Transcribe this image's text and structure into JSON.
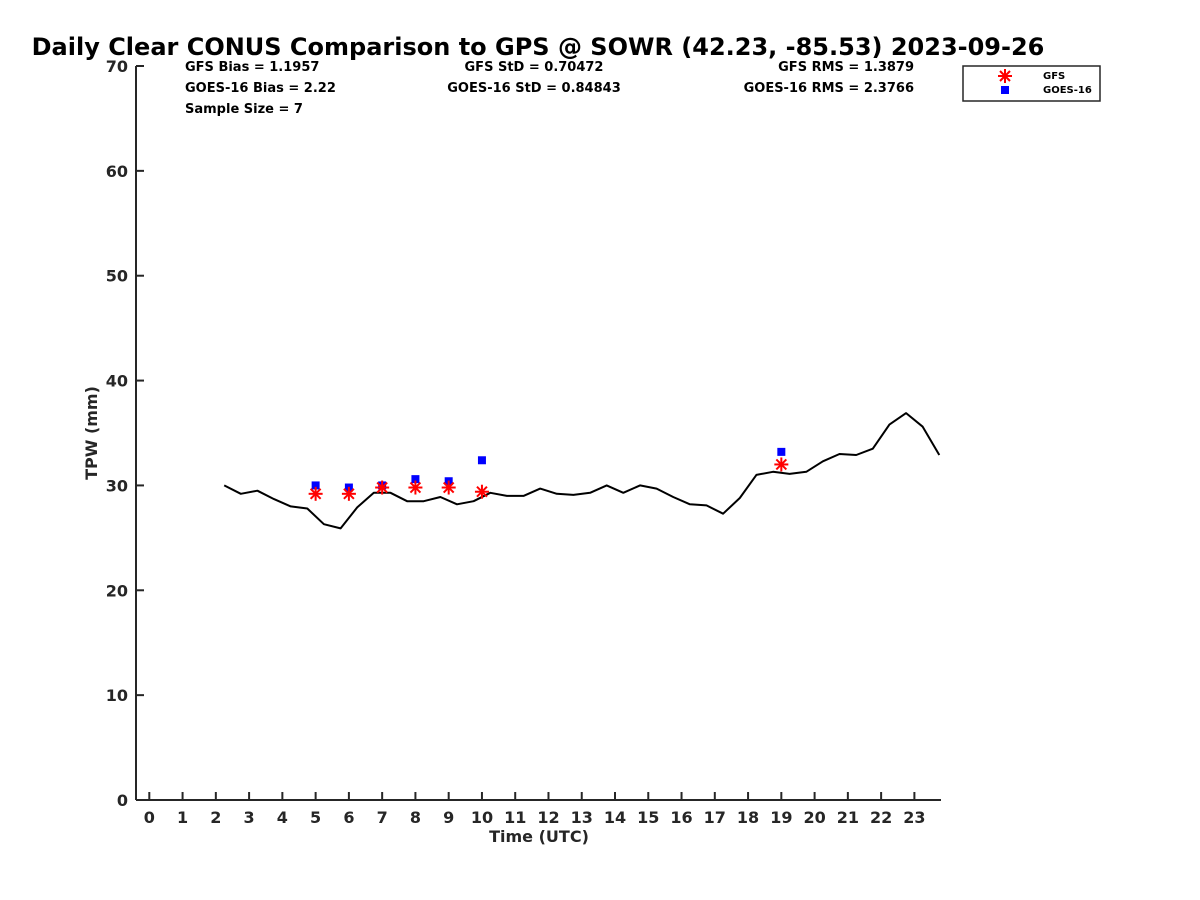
{
  "chart_data": {
    "type": "scatter",
    "title": "Daily Clear CONUS Comparison to GPS @ SOWR (42.23, -85.53) 2023-09-26",
    "xlabel": "Time (UTC)",
    "ylabel": "TPW (mm)",
    "xlim": [
      -0.4,
      23.8
    ],
    "ylim": [
      0,
      70
    ],
    "x_ticks": [
      0,
      1,
      2,
      3,
      4,
      5,
      6,
      7,
      8,
      9,
      10,
      11,
      12,
      13,
      14,
      15,
      16,
      17,
      18,
      19,
      20,
      21,
      22,
      23
    ],
    "y_ticks": [
      0,
      10,
      20,
      30,
      40,
      50,
      60,
      70
    ],
    "grid": false,
    "legend_position": "top-right",
    "stats": {
      "gfs_bias": "GFS Bias = 1.1957",
      "goes_bias": "GOES-16 Bias = 2.22",
      "sample_size": "Sample Size = 7",
      "gfs_std": "GFS StD = 0.70472",
      "goes_std": "GOES-16 StD = 0.84843",
      "gfs_rms": "GFS RMS = 1.3879",
      "goes_rms": "GOES-16 RMS = 2.3766"
    },
    "series": [
      {
        "name": "GFS",
        "mark": "asterisk",
        "color": "#ff0000",
        "x": [
          5,
          6,
          7,
          8,
          9,
          10,
          19
        ],
        "y": [
          29.2,
          29.2,
          29.8,
          29.8,
          29.8,
          29.4,
          32.0
        ]
      },
      {
        "name": "GOES-16",
        "mark": "square",
        "color": "#0000ff",
        "x": [
          5,
          6,
          7,
          8,
          9,
          10,
          19
        ],
        "y": [
          30.0,
          29.8,
          30.0,
          30.6,
          30.4,
          32.4,
          33.2
        ]
      },
      {
        "mark": "line",
        "color": "#000000",
        "x": [
          2.25,
          2.75,
          3.25,
          3.75,
          4.25,
          4.75,
          5.25,
          5.75,
          6.25,
          6.75,
          7.25,
          7.75,
          8.25,
          8.75,
          9.25,
          9.75,
          10.25,
          10.75,
          11.25,
          11.75,
          12.25,
          12.75,
          13.25,
          13.75,
          14.25,
          14.75,
          15.25,
          15.75,
          16.25,
          16.75,
          17.25,
          17.75,
          18.25,
          18.75,
          19.25,
          19.75,
          20.25,
          20.75,
          21.25,
          21.75,
          22.25,
          22.75,
          23.25,
          23.75
        ],
        "y": [
          30.0,
          29.2,
          29.5,
          28.7,
          28.0,
          27.8,
          26.3,
          25.9,
          27.9,
          29.3,
          29.3,
          28.5,
          28.5,
          28.9,
          28.2,
          28.5,
          29.3,
          29.0,
          29.0,
          29.7,
          29.2,
          29.1,
          29.3,
          30.0,
          29.3,
          30.0,
          29.7,
          28.9,
          28.2,
          28.1,
          27.3,
          28.8,
          31.0,
          31.3,
          31.1,
          31.3,
          32.3,
          33.0,
          32.9,
          33.5,
          35.8,
          36.9,
          35.6,
          32.9
        ]
      }
    ]
  }
}
